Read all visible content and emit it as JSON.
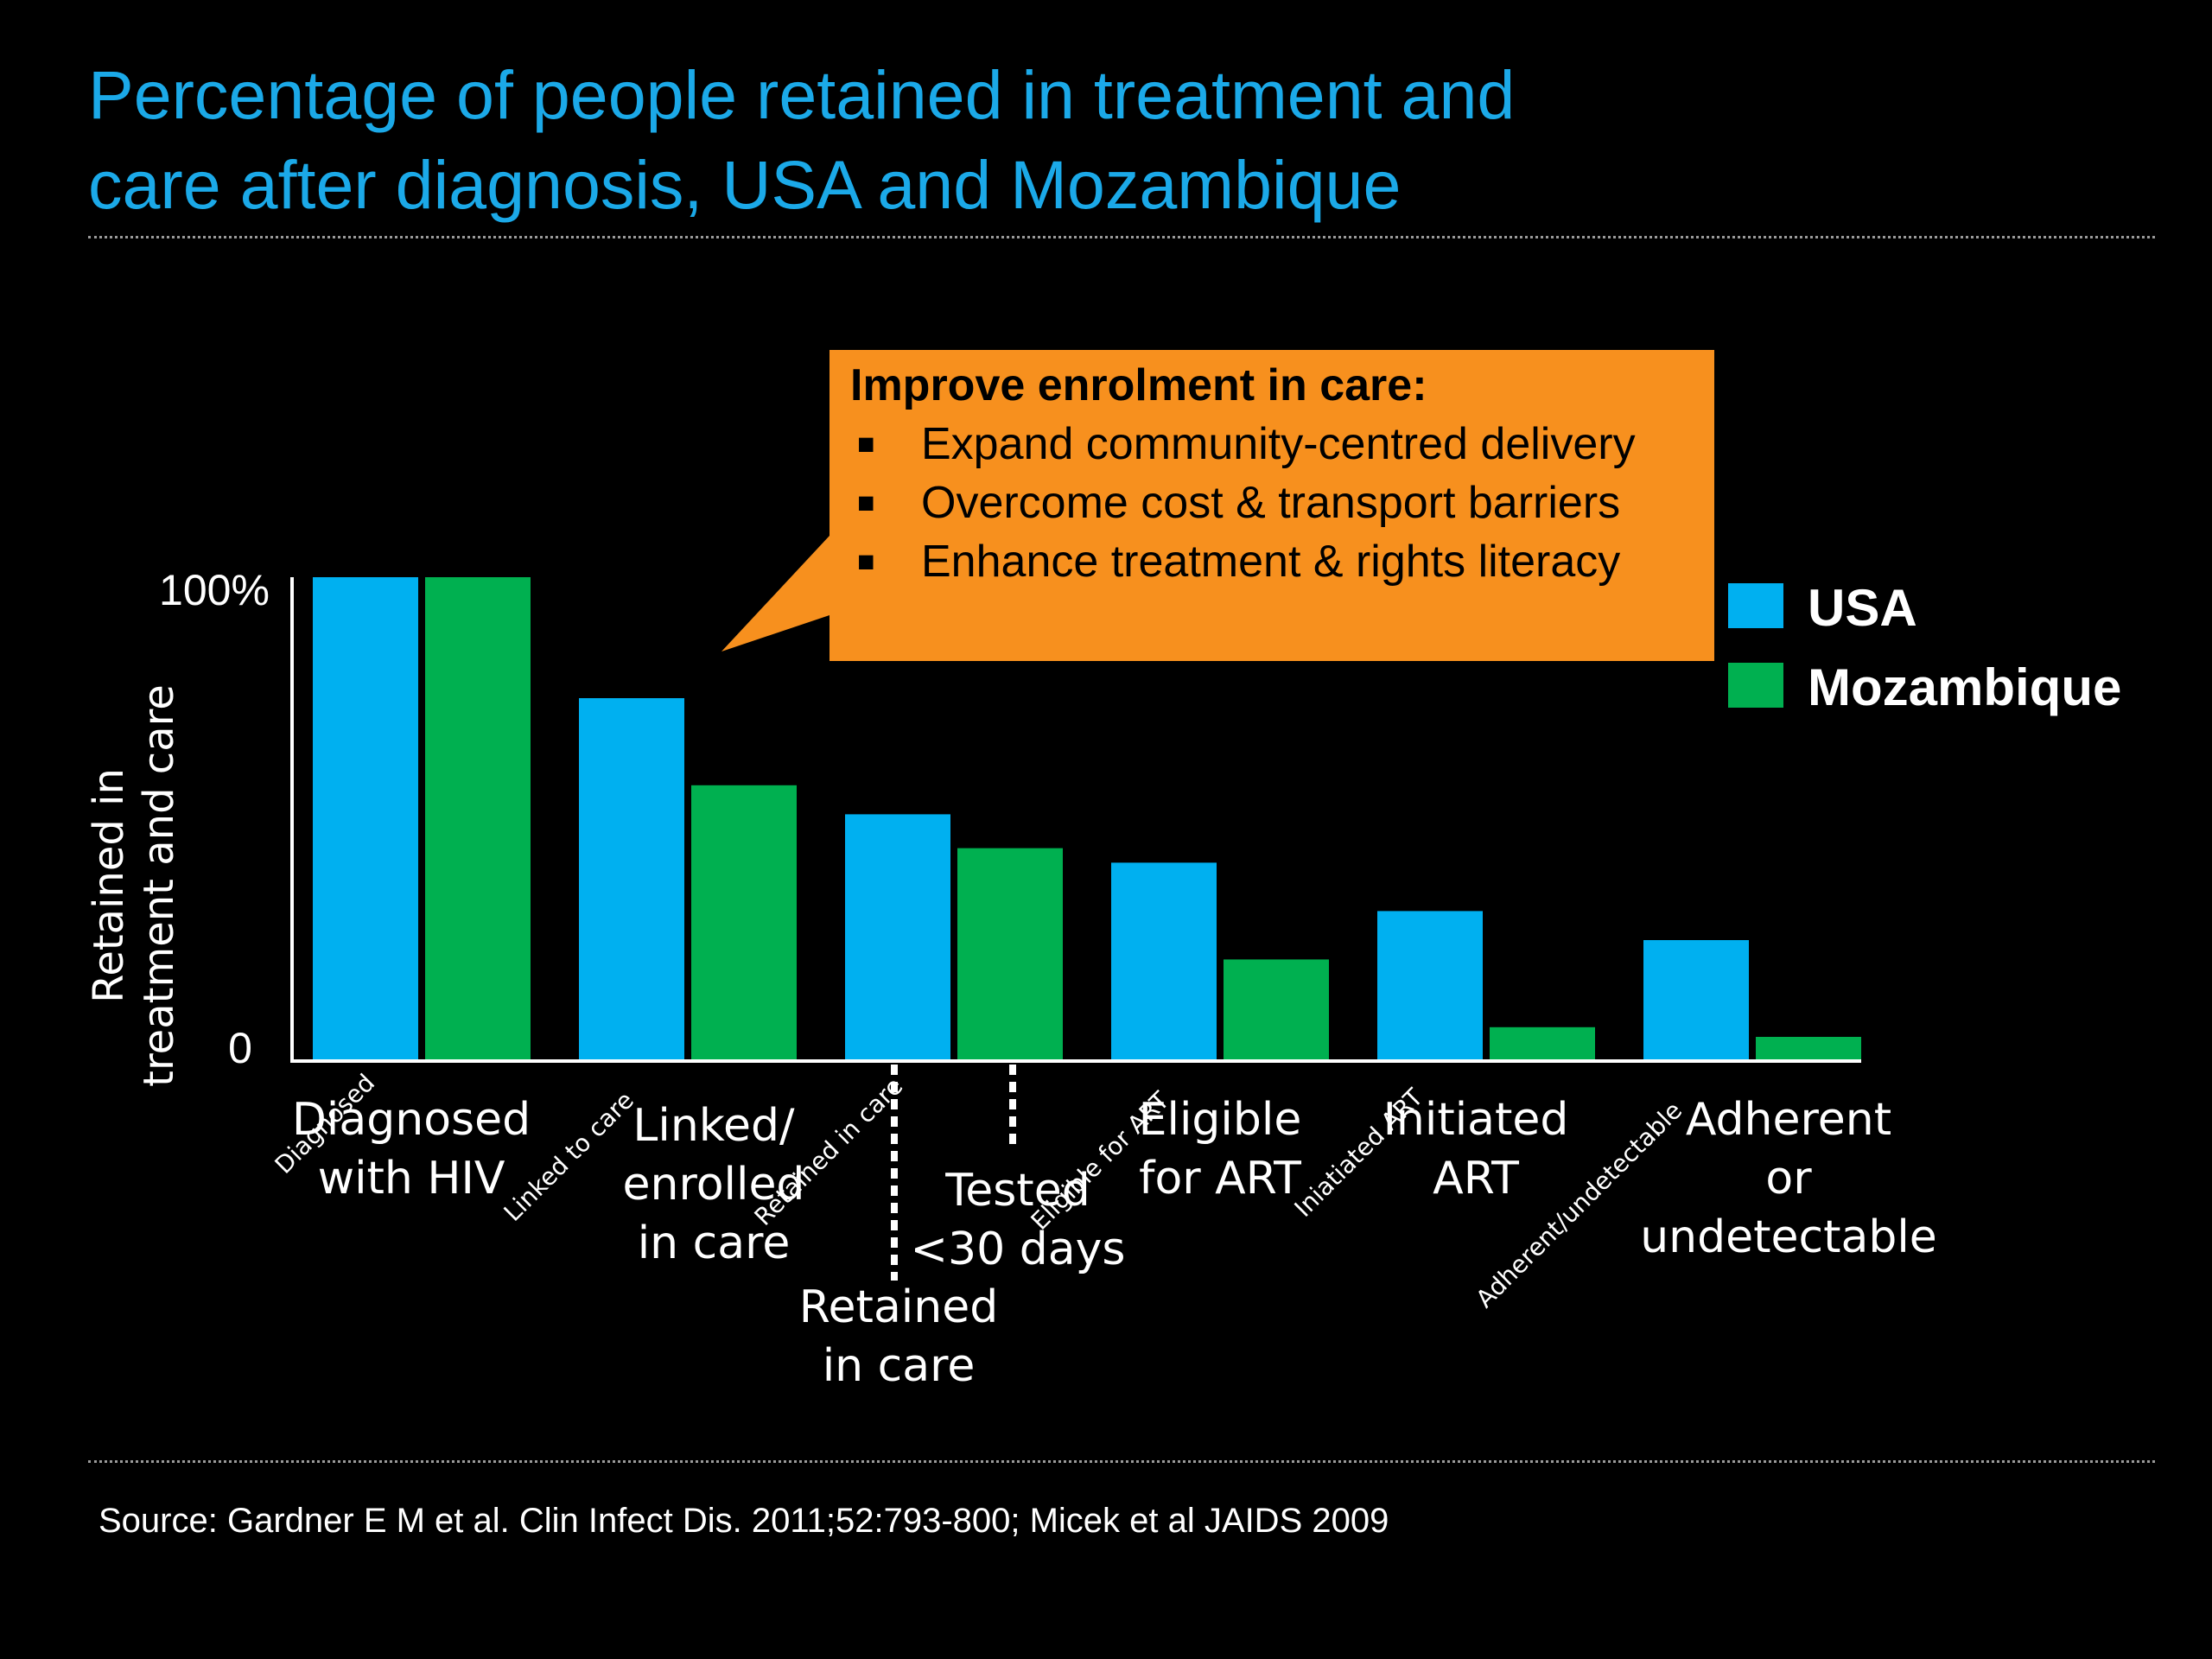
{
  "title_lines": [
    "Percentage of people retained in treatment and",
    "care after diagnosis, USA and Mozambique"
  ],
  "source": "Source: Gardner E M et al. Clin Infect Dis. 2011;52:793-800; Micek et al JAIDS 2009",
  "callout": {
    "heading": "Improve enrolment in care:",
    "bullets": [
      "Expand community-centred delivery",
      "Overcome cost & transport barriers",
      "Enhance treatment & rights literacy"
    ],
    "color": "#f7901e"
  },
  "legend": [
    {
      "name": "USA",
      "color": "#00b0f0"
    },
    {
      "name": "Mozambique",
      "color": "#00b050"
    }
  ],
  "chart_data": {
    "type": "bar",
    "ylabel_lines": [
      "Retained in",
      "treatment and care"
    ],
    "ytick_labels": [
      "0",
      "100%"
    ],
    "ylim": [
      0,
      100
    ],
    "grid": false,
    "legend_position": "right",
    "categories": [
      {
        "label_lines": [
          "Diagnosed",
          "with HIV"
        ],
        "rotated_label": "Diagnosed"
      },
      {
        "label_lines": [
          "Linked/",
          "enrolled",
          "in care"
        ],
        "rotated_label": "Linked to care"
      },
      {
        "label_lines": [
          "Retained",
          "in care"
        ],
        "rotated_label": "Retained in care"
      },
      {
        "label_lines": [
          "Eligible",
          "for ART"
        ],
        "rotated_label": "Eligible for ART"
      },
      {
        "label_lines": [
          "Initiated",
          "ART"
        ],
        "rotated_label": "Iniatiated ART"
      },
      {
        "label_lines": [
          "Adherent",
          "or",
          "undetectable"
        ],
        "rotated_label": "Adherent/undetectable"
      }
    ],
    "extra_marker": {
      "label_lines": [
        "Tested",
        "<30 days"
      ]
    },
    "series": [
      {
        "name": "USA",
        "color": "#00b0f0",
        "values": [
          100,
          75,
          51,
          41,
          31,
          25
        ]
      },
      {
        "name": "Mozambique",
        "color": "#00b050",
        "values": [
          100,
          57,
          44,
          21,
          7,
          5
        ]
      }
    ]
  }
}
